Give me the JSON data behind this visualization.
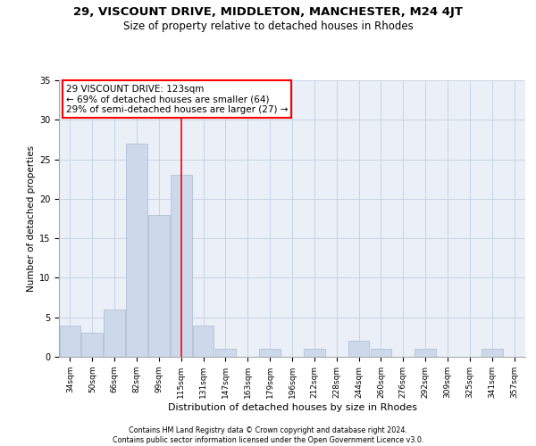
{
  "title_line1": "29, VISCOUNT DRIVE, MIDDLETON, MANCHESTER, M24 4JT",
  "title_line2": "Size of property relative to detached houses in Rhodes",
  "xlabel": "Distribution of detached houses by size in Rhodes",
  "ylabel": "Number of detached properties",
  "categories": [
    "34sqm",
    "50sqm",
    "66sqm",
    "82sqm",
    "99sqm",
    "115sqm",
    "131sqm",
    "147sqm",
    "163sqm",
    "179sqm",
    "196sqm",
    "212sqm",
    "228sqm",
    "244sqm",
    "260sqm",
    "276sqm",
    "292sqm",
    "309sqm",
    "325sqm",
    "341sqm",
    "357sqm"
  ],
  "values": [
    4,
    3,
    6,
    27,
    18,
    23,
    4,
    1,
    0,
    1,
    0,
    1,
    0,
    2,
    1,
    0,
    1,
    0,
    0,
    1,
    0
  ],
  "bar_color": "#ccd9ea",
  "bar_edge_color": "#aabcce",
  "grid_color": "#c8d4e4",
  "background_color": "#eaeff8",
  "vline_bar_index": 5,
  "vline_color": "red",
  "annotation_text": "29 VISCOUNT DRIVE: 123sqm\n← 69% of detached houses are smaller (64)\n29% of semi-detached houses are larger (27) →",
  "annotation_box_color": "white",
  "annotation_box_edge_color": "red",
  "ylim": [
    0,
    35
  ],
  "yticks": [
    0,
    5,
    10,
    15,
    20,
    25,
    30,
    35
  ],
  "footer_line1": "Contains HM Land Registry data © Crown copyright and database right 2024.",
  "footer_line2": "Contains public sector information licensed under the Open Government Licence v3.0.",
  "title1_fontsize": 9.5,
  "title2_fontsize": 8.5,
  "xlabel_fontsize": 8,
  "ylabel_fontsize": 7.5,
  "tick_fontsize": 6.5,
  "annotation_fontsize": 7.5,
  "footer_fontsize": 5.8
}
